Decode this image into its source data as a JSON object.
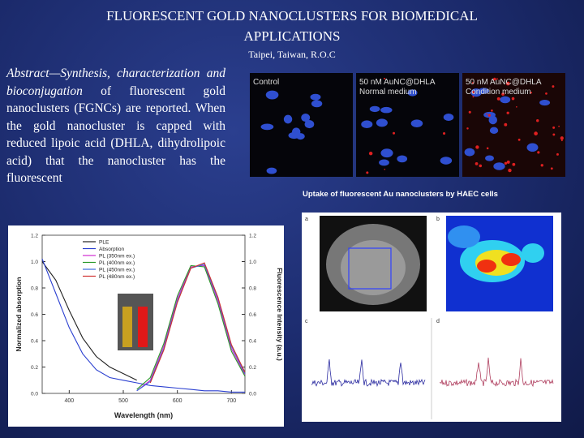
{
  "title": {
    "line1": "FLUORESCENT GOLD NANOCLUSTERS FOR BIOMEDICAL",
    "line2": "APPLICATIONS"
  },
  "location": "Taipei, Taiwan, R.O.C",
  "abstract": {
    "lead": "Abstract—Synthesis, characterization and bioconjugation",
    "body": "of fluorescent gold nanoclusters (FGNCs) are reported. When the gold nanocluster is capped with reduced lipoic acid (DHLA, dihydrolipoic acid) that the nanocluster has the fluorescent"
  },
  "microscopy": {
    "panels": [
      {
        "line1": "Control"
      },
      {
        "line1": "50 nM AuNC@DHLA",
        "line2": "Normal medium"
      },
      {
        "line1": "50 nM AuNC@DHLA",
        "line2": "Condition medium"
      }
    ],
    "caption": "Uptake of fluorescent Au nanoclusters by HAEC cells"
  },
  "mri": {
    "panel_labels": [
      "a",
      "b",
      "c",
      "d"
    ]
  },
  "chart_data": {
    "type": "line",
    "xlabel": "Wavelength (nm)",
    "ylabel": "Normalized absorption",
    "y2label": "Fluorescence Intensity (a.u.)",
    "x": [
      350,
      375,
      400,
      425,
      450,
      475,
      500,
      525,
      550,
      575,
      600,
      625,
      650,
      675,
      700,
      725
    ],
    "xlim": [
      350,
      725
    ],
    "xticks": [
      400,
      500,
      600,
      700
    ],
    "ylim": [
      0,
      1.2
    ],
    "yticks": [
      {
        "value": 0,
        "label": "0.0"
      },
      0.2,
      0.4,
      0.6,
      0.8,
      {
        "value": 1,
        "label": "1.0"
      },
      1.2
    ],
    "y2lim": [
      0,
      1.2
    ],
    "y2ticks": [
      {
        "value": 0,
        "label": "0.0"
      },
      0.2,
      0.4,
      0.6,
      0.8,
      {
        "value": 1,
        "label": "1.0"
      },
      1.2
    ],
    "series": [
      {
        "name": "PLE",
        "color": "#222222",
        "values": [
          1.0,
          0.86,
          0.63,
          0.42,
          0.28,
          0.2,
          0.15,
          0.1,
          null,
          null,
          null,
          null,
          null,
          null,
          null,
          null
        ]
      },
      {
        "name": "Absorption",
        "color": "#2a3fd0",
        "values": [
          1.02,
          0.76,
          0.5,
          0.3,
          0.18,
          0.12,
          0.1,
          0.08,
          0.06,
          0.05,
          0.04,
          0.03,
          0.02,
          0.02,
          0.01,
          0.01
        ]
      },
      {
        "name": "PL (350nm ex.)",
        "color": "#d02ad0",
        "axis": "y2",
        "values": [
          null,
          null,
          null,
          null,
          null,
          null,
          null,
          0.02,
          0.1,
          0.36,
          0.72,
          0.96,
          0.97,
          0.7,
          0.34,
          0.14
        ]
      },
      {
        "name": "PL (400nm ex.)",
        "color": "#2a9a2a",
        "axis": "y2",
        "values": [
          null,
          null,
          null,
          null,
          null,
          null,
          null,
          0.03,
          0.12,
          0.38,
          0.74,
          0.97,
          0.96,
          0.68,
          0.32,
          0.13
        ]
      },
      {
        "name": "PL (450nm ex.)",
        "color": "#3a6ae0",
        "axis": "y2",
        "values": [
          null,
          null,
          null,
          null,
          null,
          null,
          null,
          0.02,
          0.09,
          0.34,
          0.7,
          0.95,
          0.98,
          0.72,
          0.36,
          0.15
        ]
      },
      {
        "name": "PL (480nm ex.)",
        "color": "#d03030",
        "axis": "y2",
        "values": [
          null,
          null,
          null,
          null,
          null,
          null,
          null,
          null,
          0.08,
          0.33,
          0.69,
          0.95,
          0.99,
          0.73,
          0.37,
          0.16
        ]
      }
    ]
  }
}
